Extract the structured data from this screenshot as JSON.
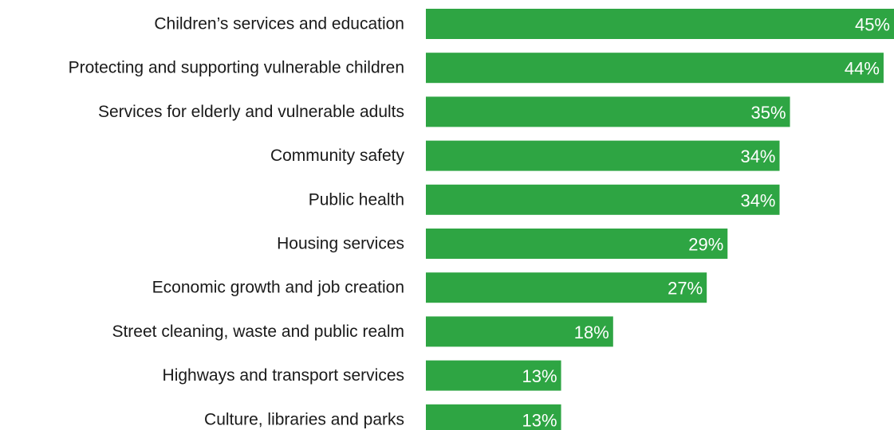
{
  "chart_data": {
    "type": "bar",
    "orientation": "horizontal",
    "categories": [
      "Children’s services and education",
      "Protecting and supporting vulnerable children",
      "Services for elderly and vulnerable adults",
      "Community safety",
      "Public health",
      "Housing services",
      "Economic growth and job creation",
      "Street cleaning, waste and public realm",
      "Highways and transport services",
      "Culture, libraries and parks"
    ],
    "values": [
      45,
      44,
      35,
      34,
      34,
      29,
      27,
      18,
      13,
      13
    ],
    "value_labels": [
      "45%",
      "44%",
      "35%",
      "34%",
      "34%",
      "29%",
      "27%",
      "18%",
      "13%",
      "13%"
    ],
    "unit": "%",
    "xlim": [
      0,
      45
    ],
    "grid": false,
    "legend": "none",
    "bar_color": "#2ea543",
    "label_color": "#ffffff"
  }
}
